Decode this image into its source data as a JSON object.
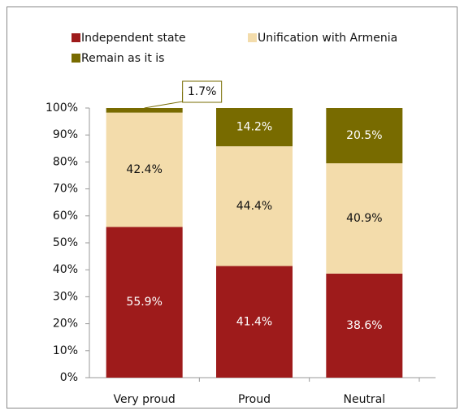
{
  "chart_data": {
    "type": "stacked_bar",
    "categories": [
      "Very proud",
      "Proud",
      "Neutral"
    ],
    "series": [
      {
        "name": "Independent state",
        "color": "#9e1b1b",
        "values": [
          55.9,
          41.4,
          38.6
        ],
        "value_labels": [
          "55.9%",
          "41.4%",
          "38.6%"
        ]
      },
      {
        "name": "Unification with Armenia",
        "color": "#f3dcab",
        "values": [
          42.4,
          44.4,
          40.9
        ],
        "value_labels": [
          "42.4%",
          "44.4%",
          "40.9%"
        ]
      },
      {
        "name": "Remain as it is",
        "color": "#786b00",
        "values": [
          1.7,
          14.2,
          20.5
        ],
        "value_labels": [
          "1.7%",
          "14.2%",
          "20.5%"
        ]
      }
    ],
    "ylim": [
      0,
      100
    ],
    "yticks": [
      {
        "value": 0,
        "label": "0%"
      },
      {
        "value": 10,
        "label": "10%"
      },
      {
        "value": 20,
        "label": "20%"
      },
      {
        "value": 30,
        "label": "30%"
      },
      {
        "value": 40,
        "label": "40%"
      },
      {
        "value": 50,
        "label": "50%"
      },
      {
        "value": 60,
        "label": "60%"
      },
      {
        "value": 70,
        "label": "70%"
      },
      {
        "value": 80,
        "label": "80%"
      },
      {
        "value": 90,
        "label": "90%"
      },
      {
        "value": 100,
        "label": "100%"
      }
    ],
    "legend": "top"
  }
}
